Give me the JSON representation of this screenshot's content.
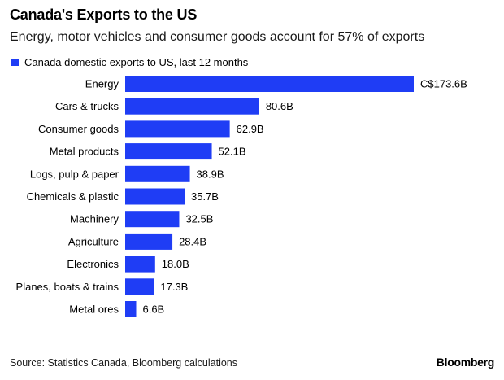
{
  "header": {
    "title": "Canada's Exports to the US",
    "subtitle": "Energy, motor vehicles and consumer goods account for 57% of exports"
  },
  "footer": {
    "source": "Source: Statistics Canada, Bloomberg calculations",
    "brand": "Bloomberg"
  },
  "colors": {
    "bar": "#1f3df5"
  },
  "chart_data": {
    "type": "bar",
    "orientation": "horizontal",
    "title": "Canada's Exports to the US",
    "subtitle": "Energy, motor vehicles and consumer goods account for 57% of exports",
    "legend_position": "top-left",
    "grid": false,
    "xlim": [
      0,
      173.6
    ],
    "categories": [
      "Energy",
      "Cars & trucks",
      "Consumer goods",
      "Metal products",
      "Logs, pulp & paper",
      "Chemicals & plastic",
      "Machinery",
      "Agriculture",
      "Electronics",
      "Planes, boats & trains",
      "Metal ores"
    ],
    "series": [
      {
        "name": "Canada domestic exports to US, last 12 months",
        "values": [
          173.6,
          80.6,
          62.9,
          52.1,
          38.9,
          35.7,
          32.5,
          28.4,
          18.0,
          17.3,
          6.6
        ],
        "labels": [
          "C$173.6B",
          "80.6B",
          "62.9B",
          "52.1B",
          "38.9B",
          "35.7B",
          "32.5B",
          "28.4B",
          "18.0B",
          "17.3B",
          "6.6B"
        ]
      }
    ]
  }
}
